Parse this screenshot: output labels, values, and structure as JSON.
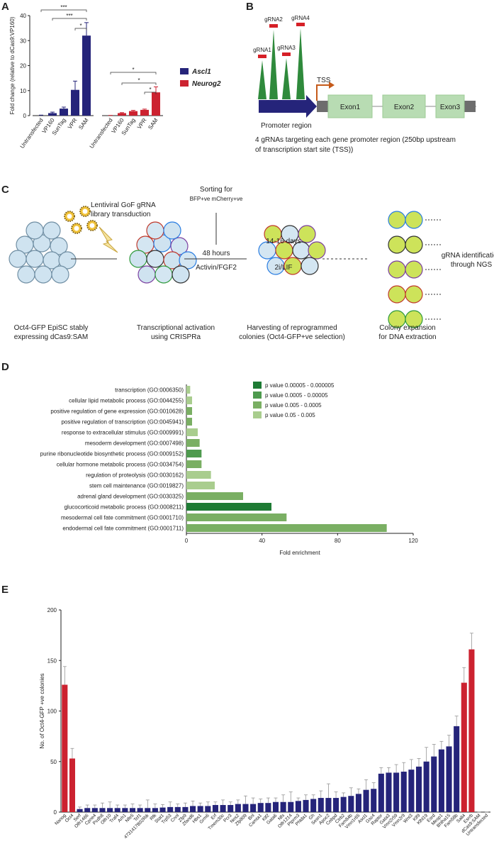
{
  "panels": [
    "A",
    "B",
    "C",
    "D",
    "E"
  ],
  "chart_data": [
    {
      "type": "bar",
      "ylabel": "Fold change (relative to dCas9:VP160)",
      "categories": [
        "Untransfected",
        "VP160",
        "SunTag",
        "VPR",
        "SAM"
      ],
      "series": [
        {
          "name": "Ascl1",
          "color": "#25247a",
          "values": [
            0,
            1,
            2.8,
            10.3,
            32
          ],
          "errors": [
            0.2,
            0.4,
            0.6,
            3.5,
            5.2
          ],
          "significance": [
            "***",
            "***",
            "*"
          ]
        },
        {
          "name": "Neurog2",
          "color": "#cc2230",
          "values": [
            0,
            1,
            1.8,
            2.3,
            9.3
          ],
          "errors": [
            0.1,
            0.2,
            0.3,
            0.3,
            2.2
          ],
          "significance": [
            "*",
            "*",
            "*"
          ]
        }
      ],
      "ylim": [
        0,
        40
      ],
      "yticks": [
        0,
        10,
        20,
        30,
        40
      ]
    },
    {
      "type": "barh",
      "xlabel": "Fold enrichment",
      "categories": [
        "transcription (GO:0006350)",
        "cellular lipid metabolic process (GO:0044255)",
        "positive regulation of gene expression (GO:0010628)",
        "positive regulation of transcription (GO:0045941)",
        "response to extracellular stimulus (GO:0009991)",
        "mesoderm development (GO:0007498)",
        "purine ribonucleotide biosynthetic process (GO:0009152)",
        "cellular hormone metabolic process (GO:0034754)",
        "regulation of proteolysis (GO:0030162)",
        "stem cell maintenance (GO:0019827)",
        "adrenal gland development (GO:0030325)",
        "glucocorticoid metabolic process (GO:0008211)",
        "mesodermal cell fate commitment (GO:0001710)",
        "endodermal cell fate commitment (GO:0001711)"
      ],
      "values": [
        2,
        3,
        3,
        3,
        6,
        7,
        8,
        8,
        13,
        15,
        30,
        45,
        53,
        106
      ],
      "colors": [
        "#a9cd8e",
        "#a9cd8e",
        "#7aaf63",
        "#7aaf63",
        "#a9cd8e",
        "#7aaf63",
        "#4e9a4e",
        "#7aaf63",
        "#a9cd8e",
        "#a9cd8e",
        "#7aaf63",
        "#1e7b34",
        "#7aaf63",
        "#7aaf63"
      ],
      "legend": [
        {
          "name": "p value 0.00005 - 0.000005",
          "color": "#1e7b34"
        },
        {
          "name": "p value 0.0005 - 0.00005",
          "color": "#4e9a4e"
        },
        {
          "name": "p value 0.005 - 0.0005",
          "color": "#7aaf63"
        },
        {
          "name": "p value 0.05 - 0.005",
          "color": "#a9cd8e"
        }
      ],
      "xlim": [
        0,
        120
      ],
      "xticks": [
        0,
        40,
        80,
        120
      ]
    },
    {
      "type": "bar",
      "ylabel": "No. of Oct4-GFP +ve colonies",
      "categories": [
        "Nanog",
        "Oct4",
        "Serf",
        "Olfr1466",
        "Cpne4",
        "Pcdh8",
        "Olfr10",
        "Traf4",
        "Arh1",
        "Nfe5",
        "Tcf1",
        "4731417B02Rik",
        "Rfk",
        "Stat1",
        "Trp53",
        "Cnnl",
        "Zfp9",
        "Zfand6",
        "Hbs1",
        "Grm6",
        "Erf",
        "Tmem30c",
        "Pcr3",
        "Nos2",
        "Zfp809",
        "Bnl",
        "Camta1",
        "Klf2",
        "Gata6",
        "Nfs",
        "Olfr1214",
        "Ptprm3",
        "Phlda1",
        "Gh",
        "Sesn1",
        "Apoc2",
        "Cebpd",
        "Ctrb2",
        "Fam84b",
        "Vmn1r65",
        "Ascl1",
        "Gsc4",
        "Raptor",
        "Gata3",
        "Vmn2r59",
        "Vmn2r9",
        "Wnt3",
        "Klf9",
        "Klhl19",
        "Esrd",
        "Mesp1",
        "Bhlha15",
        "Fam58b",
        "Sall4",
        "Esrrb",
        "dCas9:SAM",
        "Untransfected"
      ],
      "values": [
        126,
        53,
        3,
        4,
        4,
        4,
        4,
        4,
        4,
        4,
        4,
        4,
        4,
        4.5,
        5,
        5,
        5,
        6,
        6,
        6,
        7,
        7,
        7,
        8,
        8,
        8,
        9,
        9,
        10,
        10,
        10,
        11,
        12,
        13,
        14,
        14,
        14,
        15,
        16,
        18,
        22,
        23,
        38,
        39,
        39,
        40,
        42,
        45,
        50,
        55,
        62,
        65,
        85,
        128,
        161,
        0,
        0
      ],
      "errors": [
        18,
        10,
        2,
        3,
        3,
        5,
        6,
        3,
        3,
        4,
        3,
        8,
        4,
        3,
        5,
        3,
        4,
        5,
        3,
        4,
        3,
        5,
        3,
        4,
        8,
        6,
        4,
        5,
        4,
        7,
        10,
        3,
        5,
        4,
        7,
        14,
        6,
        4,
        8,
        5,
        10,
        6,
        6,
        5,
        8,
        9,
        10,
        8,
        14,
        12,
        8,
        11,
        10,
        15,
        16,
        0,
        0
      ],
      "colors": [
        "#cc2230",
        "#cc2230",
        "#25247a",
        "#25247a",
        "#25247a",
        "#25247a",
        "#25247a",
        "#25247a",
        "#25247a",
        "#25247a",
        "#25247a",
        "#25247a",
        "#25247a",
        "#25247a",
        "#25247a",
        "#25247a",
        "#25247a",
        "#25247a",
        "#25247a",
        "#25247a",
        "#25247a",
        "#25247a",
        "#25247a",
        "#25247a",
        "#25247a",
        "#25247a",
        "#25247a",
        "#25247a",
        "#25247a",
        "#25247a",
        "#25247a",
        "#25247a",
        "#25247a",
        "#25247a",
        "#25247a",
        "#25247a",
        "#25247a",
        "#25247a",
        "#25247a",
        "#25247a",
        "#25247a",
        "#25247a",
        "#25247a",
        "#25247a",
        "#25247a",
        "#25247a",
        "#25247a",
        "#25247a",
        "#25247a",
        "#25247a",
        "#25247a",
        "#25247a",
        "#25247a",
        "#cc2230",
        "#cc2230",
        "#25247a",
        "#25247a"
      ],
      "ylim": [
        0,
        200
      ],
      "yticks": [
        0,
        50,
        100,
        150,
        200
      ]
    }
  ],
  "panel_b": {
    "grnas": [
      "gRNA1",
      "gRNA2",
      "gRNA3",
      "gRNA4"
    ],
    "tss": "TSS",
    "promoter": "Promoter region",
    "exons": [
      "Exon1",
      "Exon2",
      "Exon3"
    ],
    "caption": [
      "4 gRNAs targeting each gene promoter region (250bp upstream",
      "of transcription start site (TSS))"
    ]
  },
  "panel_c": {
    "library": [
      "Lentiviral GoF gRNA",
      "library transduction"
    ],
    "sorting": [
      "Sorting for",
      "BFP+ve mCherry+ve"
    ],
    "step1": [
      "48 hours",
      "Activin/FGF2"
    ],
    "step2": [
      "14-16 days",
      "2i/LIF"
    ],
    "ngs": [
      "gRNA identification",
      "through NGS"
    ],
    "captions": [
      [
        "Oct4-GFP EpiSC stably",
        "expressing dCas9:SAM"
      ],
      [
        "Transcriptional activation",
        "using CRISPRa"
      ],
      [
        "Harvesting of reprogrammed",
        "colonies (Oct4-GFP+ve selection)"
      ],
      [
        "Colony expansion",
        "for DNA extraction"
      ]
    ]
  }
}
